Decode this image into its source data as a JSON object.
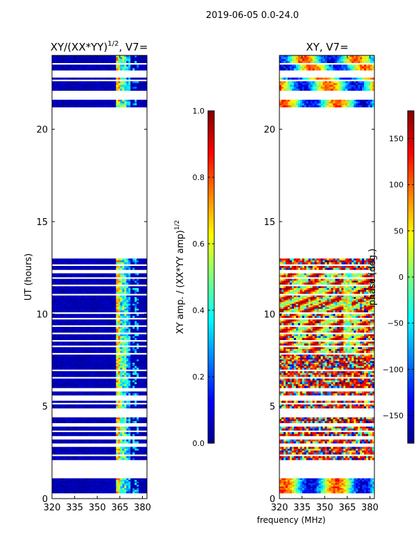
{
  "figure_title": "2019-06-05 0.0-24.0",
  "chart_data": [
    {
      "type": "heatmap",
      "title_main": "XY/(XX*YY)",
      "title_sup": "1/2",
      "title_tail": ", V7=",
      "xlabel": "",
      "ylabel": "UT (hours)",
      "xlim": [
        320,
        383
      ],
      "ylim": [
        0,
        24
      ],
      "xticks": [
        320,
        335,
        350,
        365,
        380
      ],
      "yticks": [
        0,
        5,
        10,
        15,
        20
      ],
      "colorbar": {
        "label_main": "XY amp. / (XX*YY amp)",
        "label_sup": "1/2",
        "range": [
          0.0,
          1.0
        ],
        "ticks": [
          "0.0",
          "0.2",
          "0.4",
          "0.6",
          "0.8",
          "1.0"
        ],
        "tick_values": [
          0.0,
          0.2,
          0.4,
          0.6,
          0.8,
          1.0
        ]
      },
      "data_row_bands_hours": [
        [
          0.3,
          1.1
        ],
        [
          2.1,
          2.3
        ],
        [
          2.4,
          2.8
        ],
        [
          3.0,
          3.2
        ],
        [
          3.4,
          3.6
        ],
        [
          3.7,
          3.9
        ],
        [
          4.1,
          4.4
        ],
        [
          4.9,
          5.1
        ],
        [
          5.2,
          5.3
        ],
        [
          5.6,
          5.8
        ],
        [
          6.0,
          6.5
        ],
        [
          6.6,
          6.9
        ],
        [
          7.0,
          7.8
        ],
        [
          7.9,
          8.2
        ],
        [
          8.3,
          8.5
        ],
        [
          8.6,
          8.9
        ],
        [
          9.0,
          9.3
        ],
        [
          9.4,
          9.7
        ],
        [
          9.8,
          10.0
        ],
        [
          10.1,
          11.0
        ],
        [
          11.1,
          11.5
        ],
        [
          11.6,
          11.9
        ],
        [
          12.0,
          12.2
        ],
        [
          12.4,
          12.6
        ],
        [
          12.7,
          13.0
        ],
        [
          21.2,
          21.6
        ],
        [
          22.1,
          22.6
        ],
        [
          22.7,
          22.8
        ],
        [
          23.2,
          23.5
        ],
        [
          23.6,
          24.0
        ]
      ]
    },
    {
      "type": "heatmap",
      "title_main": "XY, V7=",
      "xlabel": "frequency (MHz)",
      "ylabel": "",
      "xlim": [
        320,
        383
      ],
      "ylim": [
        0,
        24
      ],
      "xticks": [
        320,
        335,
        350,
        365,
        380
      ],
      "yticks": [
        0,
        5,
        10,
        15,
        20
      ],
      "colorbar": {
        "label": "phase (deg.)",
        "range": [
          -180,
          180
        ],
        "ticks": [
          "150",
          "100",
          "50",
          "0",
          "−50",
          "−100",
          "−150"
        ],
        "tick_values": [
          150,
          100,
          50,
          0,
          -50,
          -100,
          -150
        ]
      }
    }
  ],
  "colors": {
    "low": "#00008f",
    "mid": "#00c8ff",
    "high": "#ffef00",
    "peak": "#800000"
  }
}
